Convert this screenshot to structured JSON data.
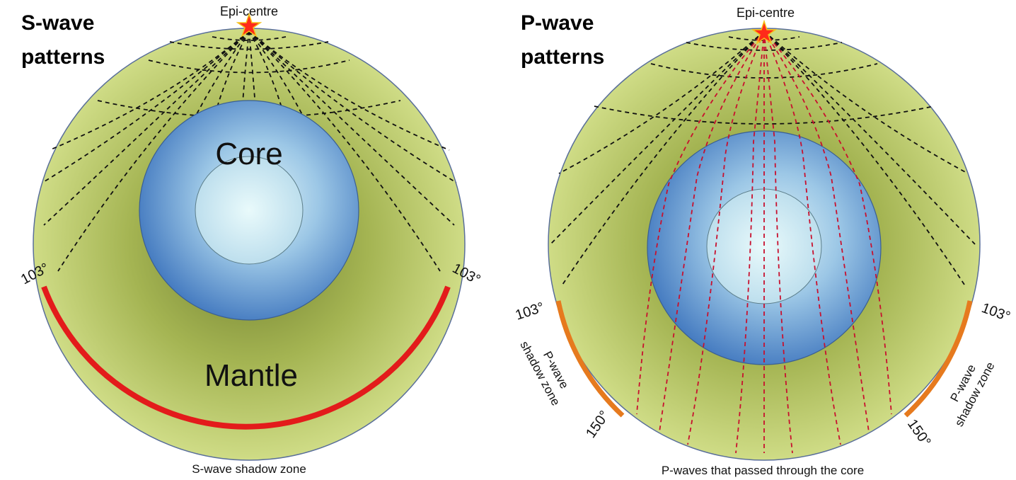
{
  "left_panel": {
    "title_line1": "S-wave",
    "title_line2": "patterns",
    "epicentre": "Epi-centre",
    "core_label": "Core",
    "mantle_label": "Mantle",
    "angle_left": "103°",
    "angle_right": "103°",
    "caption": "S-wave shadow zone",
    "shadow_color": "#e31b1b"
  },
  "right_panel": {
    "title_line1": "P-wave",
    "title_line2": "patterns",
    "epicentre": "Epi-centre",
    "angle_left_top": "103°",
    "angle_left_bottom": "150°",
    "angle_right_top": "103°",
    "angle_right_bottom": "150°",
    "shadow_left_line1": "P-wave",
    "shadow_left_line2": "shadow zone",
    "shadow_right_line1": "P-wave",
    "shadow_right_line2": "shadow zone",
    "caption": "P-waves that passed through the core",
    "shadow_color": "#e67a1e"
  },
  "colors": {
    "mantle": "#c5d27a",
    "core_outer": "#4a86c8",
    "core_inner": "#d6f1f5",
    "ray_mantle": "#111111",
    "ray_core": "#c8102e",
    "star": "#ff2a1a"
  }
}
